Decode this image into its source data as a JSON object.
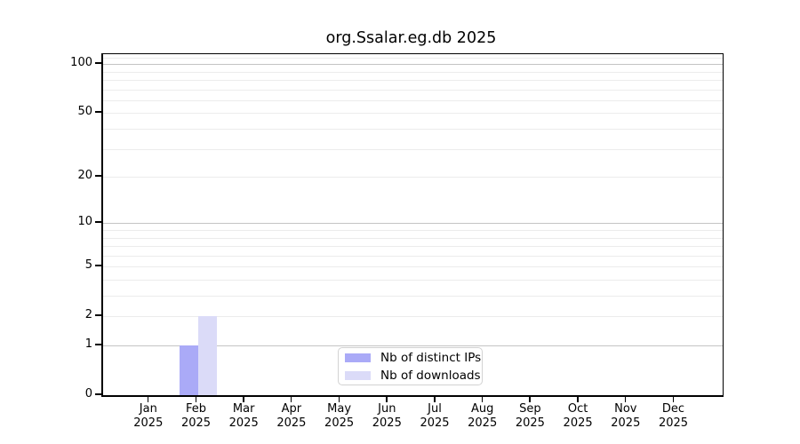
{
  "chart_data": {
    "type": "bar",
    "title": "org.Ssalar.eg.db 2025",
    "categories": [
      "Jan",
      "Feb",
      "Mar",
      "Apr",
      "May",
      "Jun",
      "Jul",
      "Aug",
      "Sep",
      "Oct",
      "Nov",
      "Dec"
    ],
    "category_year": "2025",
    "series": [
      {
        "name": "Nb of distinct IPs",
        "color": "#aaaaf7",
        "values": [
          0,
          1,
          0,
          0,
          0,
          0,
          0,
          0,
          0,
          0,
          0,
          0
        ]
      },
      {
        "name": "Nb of downloads",
        "color": "#dbdbf8",
        "values": [
          0,
          2,
          0,
          0,
          0,
          0,
          0,
          0,
          0,
          0,
          0,
          0
        ]
      }
    ],
    "yscale": "log1p",
    "ylim": [
      0,
      115
    ],
    "yticks": [
      0,
      1,
      2,
      5,
      10,
      20,
      50,
      100
    ],
    "grid_major_values": [
      1,
      10,
      100
    ],
    "grid_minor_values": [
      2,
      3,
      4,
      5,
      6,
      7,
      8,
      9,
      20,
      30,
      40,
      50,
      60,
      70,
      80,
      90,
      110
    ],
    "legend": {
      "position": "bottom-center"
    },
    "colors": {
      "grid_major": "#c4c4c4",
      "grid_minor": "#ececec",
      "axis": "#000000",
      "background": "#ffffff"
    }
  }
}
